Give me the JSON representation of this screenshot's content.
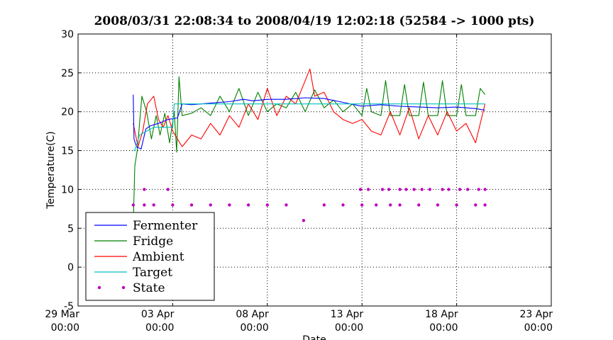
{
  "chart_data": {
    "type": "line",
    "title": "2008/03/31 22:08:34 to 2008/04/19 12:02:18 (52584 -> 1000 pts)",
    "xlabel": "Date",
    "ylabel": "Temperature(C)",
    "ylim": [
      -5,
      30
    ],
    "xlim": [
      "2008-03-29 00:00",
      "2008-04-23 00:00"
    ],
    "yticks": [
      -5,
      0,
      5,
      10,
      15,
      20,
      25,
      30
    ],
    "xticks": [
      {
        "date": "2008-03-29",
        "label1": "29 Mar",
        "label2": "00:00"
      },
      {
        "date": "2008-04-03",
        "label1": "03 Apr",
        "label2": "00:00"
      },
      {
        "date": "2008-04-08",
        "label1": "08 Apr",
        "label2": "00:00"
      },
      {
        "date": "2008-04-13",
        "label1": "13 Apr",
        "label2": "00:00"
      },
      {
        "date": "2008-04-18",
        "label1": "18 Apr",
        "label2": "00:00"
      },
      {
        "date": "2008-04-23",
        "label1": "23 Apr",
        "label2": "00:00"
      }
    ],
    "grid": true,
    "legend_position": "lower-left",
    "series": [
      {
        "name": "Fermenter",
        "color": "#0000ff",
        "style": "line",
        "x": [
          "2008-03-31 22:00",
          "2008-03-31 23:00",
          "2008-04-01 02:00",
          "2008-04-01 08:00",
          "2008-04-01 14:00",
          "2008-04-01 20:00",
          "2008-04-02 06:00",
          "2008-04-02 18:00",
          "2008-04-03 06:00",
          "2008-04-03 12:00",
          "2008-04-04 00:00",
          "2008-04-05 00:00",
          "2008-04-06 00:00",
          "2008-04-06 18:00",
          "2008-04-07 06:00",
          "2008-04-08 00:00",
          "2008-04-09 00:00",
          "2008-04-10 00:00",
          "2008-04-11 00:00",
          "2008-04-12 00:00",
          "2008-04-13 00:00",
          "2008-04-14 00:00",
          "2008-04-15 00:00",
          "2008-04-16 00:00",
          "2008-04-17 00:00",
          "2008-04-18 00:00",
          "2008-04-19 00:00",
          "2008-04-19 12:00"
        ],
        "y": [
          22.2,
          16.5,
          15.5,
          15.2,
          17.8,
          18.2,
          18.5,
          19.0,
          19.2,
          21.0,
          20.9,
          21.1,
          21.3,
          21.6,
          21.4,
          21.6,
          21.6,
          21.8,
          21.7,
          21.2,
          20.7,
          20.9,
          20.7,
          20.6,
          20.5,
          20.6,
          20.4,
          20.2
        ]
      },
      {
        "name": "Fridge",
        "color": "#008000",
        "style": "line",
        "x": [
          "2008-03-31 22:00",
          "2008-04-01 00:00",
          "2008-04-01 03:00",
          "2008-04-01 09:00",
          "2008-04-01 15:00",
          "2008-04-01 21:00",
          "2008-04-02 03:00",
          "2008-04-02 08:00",
          "2008-04-02 14:00",
          "2008-04-02 20:00",
          "2008-04-03 02:00",
          "2008-04-03 05:00",
          "2008-04-03 08:00",
          "2008-04-03 12:00",
          "2008-04-04 00:00",
          "2008-04-04 12:00",
          "2008-04-05 00:00",
          "2008-04-05 12:00",
          "2008-04-06 00:00",
          "2008-04-06 12:00",
          "2008-04-07 00:00",
          "2008-04-07 12:00",
          "2008-04-08 00:00",
          "2008-04-08 12:00",
          "2008-04-09 00:00",
          "2008-04-09 12:00",
          "2008-04-10 00:00",
          "2008-04-10 12:00",
          "2008-04-11 00:00",
          "2008-04-11 12:00",
          "2008-04-12 00:00",
          "2008-04-12 12:00",
          "2008-04-13 00:00",
          "2008-04-13 06:00",
          "2008-04-13 12:00",
          "2008-04-14 00:00",
          "2008-04-14 06:00",
          "2008-04-14 12:00",
          "2008-04-15 00:00",
          "2008-04-15 06:00",
          "2008-04-15 12:00",
          "2008-04-16 00:00",
          "2008-04-16 06:00",
          "2008-04-16 12:00",
          "2008-04-17 00:00",
          "2008-04-17 06:00",
          "2008-04-17 12:00",
          "2008-04-18 00:00",
          "2008-04-18 06:00",
          "2008-04-18 12:00",
          "2008-04-19 00:00",
          "2008-04-19 06:00",
          "2008-04-19 12:00"
        ],
        "y": [
          5.5,
          13.0,
          15.0,
          22.0,
          20.0,
          16.5,
          19.5,
          17.0,
          19.8,
          16.0,
          20.0,
          14.8,
          24.5,
          19.5,
          19.8,
          20.5,
          19.5,
          22.0,
          20.0,
          23.0,
          19.5,
          22.5,
          20.0,
          21.0,
          20.5,
          22.5,
          20.0,
          22.8,
          20.5,
          21.5,
          20.0,
          21.0,
          19.5,
          23.0,
          20.0,
          19.5,
          24.0,
          19.5,
          19.5,
          23.5,
          19.5,
          19.5,
          23.8,
          19.5,
          19.5,
          24.0,
          19.5,
          19.5,
          23.5,
          19.5,
          19.5,
          23.0,
          22.2
        ]
      },
      {
        "name": "Ambient",
        "color": "#ff0000",
        "style": "line",
        "x": [
          "2008-03-31 22:00",
          "2008-04-01 04:00",
          "2008-04-01 10:00",
          "2008-04-01 16:00",
          "2008-04-02 00:00",
          "2008-04-02 06:00",
          "2008-04-02 12:00",
          "2008-04-02 18:00",
          "2008-04-03 00:00",
          "2008-04-03 06:00",
          "2008-04-03 12:00",
          "2008-04-04 00:00",
          "2008-04-04 12:00",
          "2008-04-05 00:00",
          "2008-04-05 12:00",
          "2008-04-06 00:00",
          "2008-04-06 12:00",
          "2008-04-07 00:00",
          "2008-04-07 12:00",
          "2008-04-08 00:00",
          "2008-04-08 12:00",
          "2008-04-09 00:00",
          "2008-04-09 12:00",
          "2008-04-10 00:00",
          "2008-04-10 06:00",
          "2008-04-10 12:00",
          "2008-04-11 00:00",
          "2008-04-11 12:00",
          "2008-04-12 00:00",
          "2008-04-12 12:00",
          "2008-04-13 00:00",
          "2008-04-13 12:00",
          "2008-04-14 00:00",
          "2008-04-14 12:00",
          "2008-04-15 00:00",
          "2008-04-15 12:00",
          "2008-04-16 00:00",
          "2008-04-16 12:00",
          "2008-04-17 00:00",
          "2008-04-17 12:00",
          "2008-04-18 00:00",
          "2008-04-18 12:00",
          "2008-04-19 00:00",
          "2008-04-19 12:00"
        ],
        "y": [
          18.5,
          15.5,
          17.5,
          21.0,
          22.0,
          19.0,
          18.0,
          19.5,
          17.5,
          16.5,
          15.5,
          17.0,
          16.5,
          18.5,
          17.0,
          19.5,
          18.0,
          21.0,
          19.0,
          23.0,
          19.5,
          22.0,
          21.0,
          24.0,
          25.5,
          22.0,
          22.5,
          20.0,
          19.0,
          18.5,
          19.0,
          17.5,
          17.0,
          20.0,
          17.0,
          20.5,
          16.5,
          19.5,
          17.0,
          20.0,
          17.5,
          18.5,
          16.0,
          21.0
        ]
      },
      {
        "name": "Target",
        "color": "#00bfbf",
        "style": "line",
        "x": [
          "2008-03-31 22:00",
          "2008-04-01 00:00",
          "2008-04-01 06:00",
          "2008-04-02 00:00",
          "2008-04-02 18:00",
          "2008-04-03 00:00",
          "2008-04-03 02:00",
          "2008-04-10 00:00",
          "2008-04-19 12:00"
        ],
        "y": [
          15.0,
          15.0,
          17.0,
          18.0,
          18.0,
          18.0,
          21.0,
          21.0,
          21.0
        ]
      },
      {
        "name": "State",
        "color": "#bf00bf",
        "style": "points",
        "x": [
          "2008-03-31 22:00",
          "2008-04-01 12:00",
          "2008-04-02 00:00",
          "2008-04-03 00:00",
          "2008-04-04 00:00",
          "2008-04-05 00:00",
          "2008-04-06 00:00",
          "2008-04-07 00:00",
          "2008-04-08 00:00",
          "2008-04-09 00:00",
          "2008-04-09 22:00",
          "2008-04-11 00:00",
          "2008-04-12 00:00",
          "2008-04-13 00:00",
          "2008-04-13 18:00",
          "2008-04-14 12:00",
          "2008-04-15 00:00",
          "2008-04-16 00:00",
          "2008-04-17 00:00",
          "2008-04-18 00:00",
          "2008-04-19 00:00",
          "2008-04-19 12:00",
          "2008-04-01 12:00",
          "2008-04-02 18:00",
          "2008-04-12 22:00",
          "2008-04-13 08:00",
          "2008-04-14 02:00",
          "2008-04-14 10:00",
          "2008-04-15 00:00",
          "2008-04-15 08:00",
          "2008-04-15 18:00",
          "2008-04-16 04:00",
          "2008-04-16 14:00",
          "2008-04-17 06:00",
          "2008-04-17 14:00",
          "2008-04-18 04:00",
          "2008-04-18 14:00",
          "2008-04-19 04:00",
          "2008-04-19 12:00"
        ],
        "y": [
          8,
          8,
          8,
          8,
          8,
          8,
          8,
          8,
          8,
          8,
          6,
          8,
          8,
          8,
          8,
          8,
          8,
          8,
          8,
          8,
          8,
          8,
          10,
          10,
          10,
          10,
          10,
          10,
          10,
          10,
          10,
          10,
          10,
          10,
          10,
          10,
          10,
          10,
          10
        ]
      }
    ]
  }
}
